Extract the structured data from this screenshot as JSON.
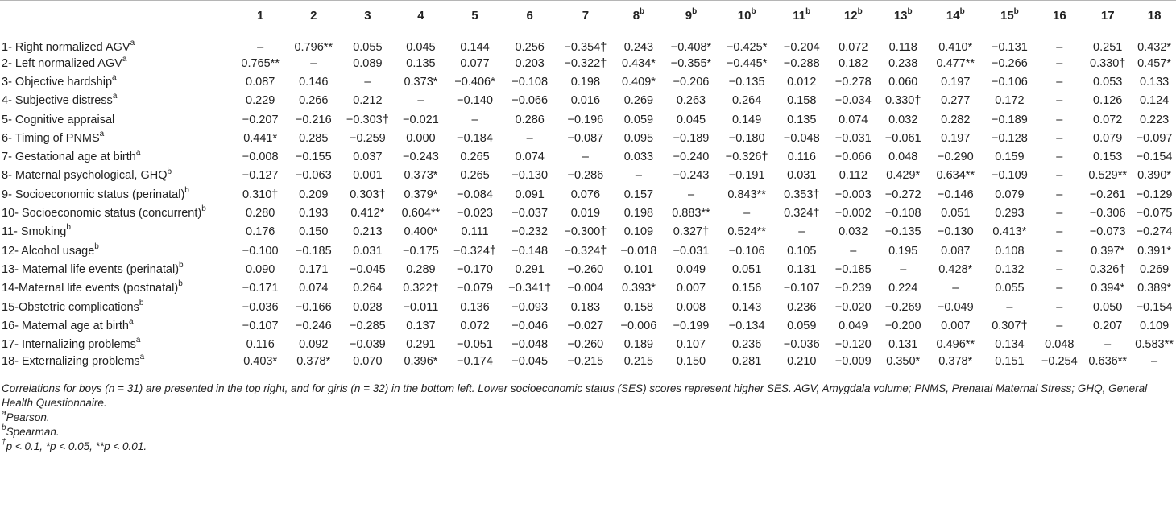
{
  "header": {
    "cols": [
      {
        "num": "1",
        "sup": ""
      },
      {
        "num": "2",
        "sup": ""
      },
      {
        "num": "3",
        "sup": ""
      },
      {
        "num": "4",
        "sup": ""
      },
      {
        "num": "5",
        "sup": ""
      },
      {
        "num": "6",
        "sup": ""
      },
      {
        "num": "7",
        "sup": ""
      },
      {
        "num": "8",
        "sup": "b"
      },
      {
        "num": "9",
        "sup": "b"
      },
      {
        "num": "10",
        "sup": "b"
      },
      {
        "num": "11",
        "sup": "b"
      },
      {
        "num": "12",
        "sup": "b"
      },
      {
        "num": "13",
        "sup": "b"
      },
      {
        "num": "14",
        "sup": "b"
      },
      {
        "num": "15",
        "sup": "b"
      },
      {
        "num": "16",
        "sup": ""
      },
      {
        "num": "17",
        "sup": ""
      },
      {
        "num": "18",
        "sup": ""
      }
    ]
  },
  "rows": [
    {
      "label": "1- Right normalized AGV",
      "sup": "a",
      "cells": [
        "–",
        "0.796**",
        "0.055",
        "0.045",
        "0.144",
        "0.256",
        "−0.354†",
        "0.243",
        "−0.408*",
        "−0.425*",
        "−0.204",
        "0.072",
        "0.118",
        "0.410*",
        "−0.131",
        "–",
        "0.251",
        "0.432*"
      ]
    },
    {
      "label": "2- Left normalized AGV",
      "sup": "a",
      "cells": [
        "0.765**",
        "–",
        "0.089",
        "0.135",
        "0.077",
        "0.203",
        "−0.322†",
        "0.434*",
        "−0.355*",
        "−0.445*",
        "−0.288",
        "0.182",
        "0.238",
        "0.477**",
        "−0.266",
        "–",
        "0.330†",
        "0.457*"
      ]
    },
    {
      "label": "3- Objective hardship",
      "sup": "a",
      "cells": [
        "0.087",
        "0.146",
        "–",
        "0.373*",
        "−0.406*",
        "−0.108",
        "0.198",
        "0.409*",
        "−0.206",
        "−0.135",
        "0.012",
        "−0.278",
        "0.060",
        "0.197",
        "−0.106",
        "–",
        "0.053",
        "0.133"
      ]
    },
    {
      "label": "4- Subjective distress",
      "sup": "a",
      "cells": [
        "0.229",
        "0.266",
        "0.212",
        "–",
        "−0.140",
        "−0.066",
        "0.016",
        "0.269",
        "0.263",
        "0.264",
        "0.158",
        "−0.034",
        "0.330†",
        "0.277",
        "0.172",
        "–",
        "0.126",
        "0.124"
      ]
    },
    {
      "label": "5- Cognitive appraisal",
      "sup": "",
      "cells": [
        "−0.207",
        "−0.216",
        "−0.303†",
        "−0.021",
        "–",
        "0.286",
        "−0.196",
        "0.059",
        "0.045",
        "0.149",
        "0.135",
        "0.074",
        "0.032",
        "0.282",
        "−0.189",
        "–",
        "0.072",
        "0.223"
      ]
    },
    {
      "label": "6- Timing of PNMS",
      "sup": "a",
      "cells": [
        "0.441*",
        "0.285",
        "−0.259",
        "0.000",
        "−0.184",
        "–",
        "−0.087",
        "0.095",
        "−0.189",
        "−0.180",
        "−0.048",
        "−0.031",
        "−0.061",
        "0.197",
        "−0.128",
        "–",
        "0.079",
        "−0.097"
      ]
    },
    {
      "label": "7- Gestational age at birth",
      "sup": "a",
      "cells": [
        "−0.008",
        "−0.155",
        "0.037",
        "−0.243",
        "0.265",
        "0.074",
        "–",
        "0.033",
        "−0.240",
        "−0.326†",
        "0.116",
        "−0.066",
        "0.048",
        "−0.290",
        "0.159",
        "–",
        "0.153",
        "−0.154"
      ]
    },
    {
      "label": "8- Maternal psychological, GHQ",
      "sup": "b",
      "cells": [
        "−0.127",
        "−0.063",
        "0.001",
        "0.373*",
        "0.265",
        "−0.130",
        "−0.286",
        "–",
        "−0.243",
        "−0.191",
        "0.031",
        "0.112",
        "0.429*",
        "0.634**",
        "−0.109",
        "–",
        "0.529**",
        "0.390*"
      ]
    },
    {
      "label": "9- Socioeconomic status (perinatal)",
      "sup": "b",
      "cells": [
        "0.310†",
        "0.209",
        "0.303†",
        "0.379*",
        "−0.084",
        "0.091",
        "0.076",
        "0.157",
        "–",
        "0.843**",
        "0.353†",
        "−0.003",
        "−0.272",
        "−0.146",
        "0.079",
        "–",
        "−0.261",
        "−0.129"
      ]
    },
    {
      "label": "10- Socioeconomic status (concurrent)",
      "sup": "b",
      "cells": [
        "0.280",
        "0.193",
        "0.412*",
        "0.604**",
        "−0.023",
        "−0.037",
        "0.019",
        "0.198",
        "0.883**",
        "–",
        "0.324†",
        "−0.002",
        "−0.108",
        "0.051",
        "0.293",
        "–",
        "−0.306",
        "−0.075"
      ]
    },
    {
      "label": "11- Smoking",
      "sup": "b",
      "cells": [
        "0.176",
        "0.150",
        "0.213",
        "0.400*",
        "0.111",
        "−0.232",
        "−0.300†",
        "0.109",
        "0.327†",
        "0.524**",
        "–",
        "0.032",
        "−0.135",
        "−0.130",
        "0.413*",
        "–",
        "−0.073",
        "−0.274"
      ]
    },
    {
      "label": "12- Alcohol usage",
      "sup": "b",
      "cells": [
        "−0.100",
        "−0.185",
        "0.031",
        "−0.175",
        "−0.324†",
        "−0.148",
        "−0.324†",
        "−0.018",
        "−0.031",
        "−0.106",
        "0.105",
        "–",
        "0.195",
        "0.087",
        "0.108",
        "–",
        "0.397*",
        "0.391*"
      ]
    },
    {
      "label": "13- Maternal life events (perinatal)",
      "sup": "b",
      "cells": [
        "0.090",
        "0.171",
        "−0.045",
        "0.289",
        "−0.170",
        "0.291",
        "−0.260",
        "0.101",
        "0.049",
        "0.051",
        "0.131",
        "−0.185",
        "–",
        "0.428*",
        "0.132",
        "–",
        "0.326†",
        "0.269"
      ]
    },
    {
      "label": "14-Maternal life events (postnatal)",
      "sup": "b",
      "cells": [
        "−0.171",
        "0.074",
        "0.264",
        "0.322†",
        "−0.079",
        "−0.341†",
        "−0.004",
        "0.393*",
        "0.007",
        "0.156",
        "−0.107",
        "−0.239",
        "0.224",
        "–",
        "0.055",
        "–",
        "0.394*",
        "0.389*"
      ]
    },
    {
      "label": "15-Obstetric complications",
      "sup": "b",
      "cells": [
        "−0.036",
        "−0.166",
        "0.028",
        "−0.011",
        "0.136",
        "−0.093",
        "0.183",
        "0.158",
        "0.008",
        "0.143",
        "0.236",
        "−0.020",
        "−0.269",
        "−0.049",
        "–",
        "–",
        "0.050",
        "−0.154"
      ]
    },
    {
      "label": "16- Maternal age at birth",
      "sup": "a",
      "cells": [
        "−0.107",
        "−0.246",
        "−0.285",
        "0.137",
        "0.072",
        "−0.046",
        "−0.027",
        "−0.006",
        "−0.199",
        "−0.134",
        "0.059",
        "0.049",
        "−0.200",
        "0.007",
        "0.307†",
        "–",
        "0.207",
        "0.109"
      ]
    },
    {
      "label": "17- Internalizing problems",
      "sup": "a",
      "cells": [
        "0.116",
        "0.092",
        "−0.039",
        "0.291",
        "−0.051",
        "−0.048",
        "−0.260",
        "0.189",
        "0.107",
        "0.236",
        "−0.036",
        "−0.120",
        "0.131",
        "0.496**",
        "0.134",
        "0.048",
        "–",
        "0.583**"
      ]
    },
    {
      "label": "18- Externalizing problems",
      "sup": "a",
      "cells": [
        "0.403*",
        "0.378*",
        "0.070",
        "0.396*",
        "−0.174",
        "−0.045",
        "−0.215",
        "0.215",
        "0.150",
        "0.281",
        "0.210",
        "−0.009",
        "0.350*",
        "0.378*",
        "0.151",
        "−0.254",
        "0.636**",
        "–"
      ]
    }
  ],
  "notes": {
    "main": "Correlations for boys (n = 31) are presented in the top right, and for girls (n = 32) in the bottom left. Lower socioeconomic status (SES) scores represent higher SES. AGV, Amygdala volume; PNMS, Prenatal Maternal Stress; GHQ, General Health Questionnaire.",
    "a_mark": "a",
    "a_text": "Pearson.",
    "b_mark": "b",
    "b_text": "Spearman.",
    "dag_mark": "†",
    "sig_text": "p < 0.1, *p < 0.05, **p < 0.01."
  }
}
